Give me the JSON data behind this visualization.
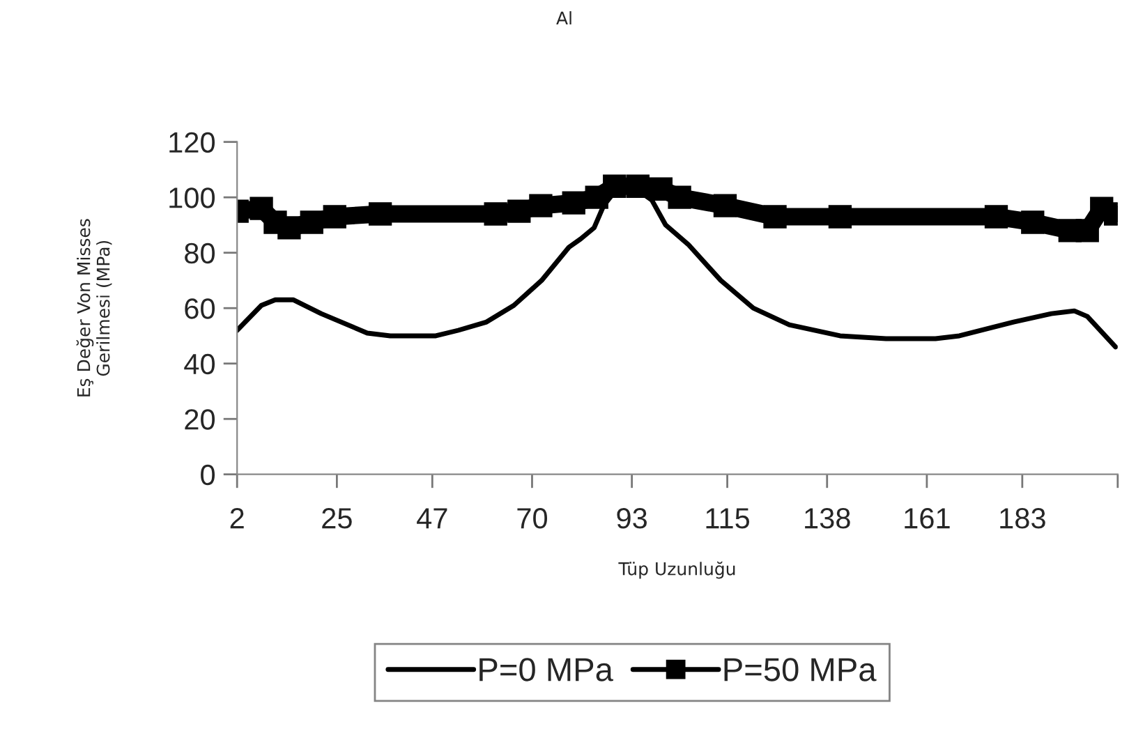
{
  "chart_data": {
    "type": "line",
    "title": "Al",
    "xlabel": "Tüp Uzunluğu",
    "ylabel": "Eş Değer Von Misses\nGerilmesi (MPa)",
    "xlim": [
      2,
      205
    ],
    "xticks": [
      2,
      25,
      47,
      70,
      93,
      115,
      138,
      161,
      183,
      {
        "value": 205,
        "label": null
      }
    ],
    "ylim": [
      0,
      120
    ],
    "yticks": [
      0,
      20,
      40,
      60,
      80,
      100,
      120
    ],
    "grid": false,
    "legend": "bottom",
    "series": [
      {
        "name": "P=0 MPa",
        "color": "#000000",
        "marker": "none",
        "x": [
          2,
          7.6,
          10.8,
          15,
          21.4,
          32,
          37.3,
          47.8,
          53,
          59.5,
          65.8,
          72.2,
          78.5,
          81.2,
          84.3,
          86.5,
          89,
          94,
          97.6,
          100.8,
          106,
          113.5,
          121,
          129.3,
          141,
          151.6,
          163,
          168.5,
          181,
          189.7,
          195,
          198,
          204.5
        ],
        "values": [
          52,
          61,
          63,
          63,
          58,
          51,
          50,
          50,
          52,
          55,
          61,
          70,
          82,
          85,
          89,
          97,
          102,
          103,
          99,
          90,
          83,
          70,
          60,
          54,
          50,
          49,
          49,
          50,
          55,
          58,
          59,
          57,
          46
        ]
      },
      {
        "name": "P=50 MPa",
        "color": "#000000",
        "marker": "square",
        "x": [
          2,
          7.6,
          10.8,
          14,
          19.2,
          24.5,
          35,
          61.6,
          67,
          72,
          79.6,
          84.9,
          89,
          94.4,
          99.7,
          104,
          114.5,
          126,
          141,
          177,
          185.4,
          194,
          198,
          201.3,
          204.5
        ],
        "values": [
          95,
          96,
          91,
          89,
          91,
          93,
          94,
          94,
          95,
          97,
          98,
          100,
          104,
          104,
          103,
          100,
          97,
          93,
          93,
          93,
          91,
          88,
          88,
          96,
          94
        ]
      }
    ]
  }
}
